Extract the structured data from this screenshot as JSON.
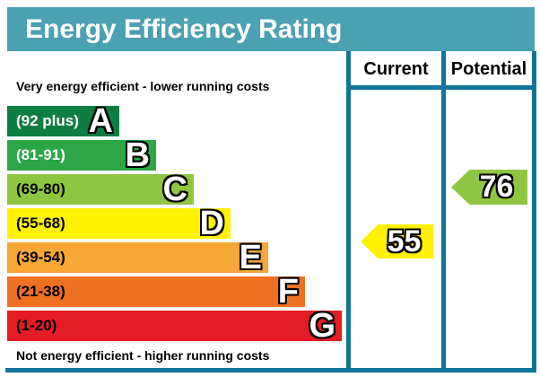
{
  "title": "Energy Efficiency Rating",
  "header": {
    "current_label": "Current",
    "potential_label": "Potential"
  },
  "notes": {
    "top": "Very energy efficient - lower running costs",
    "bottom": "Not energy efficient - higher running costs"
  },
  "bands": [
    {
      "letter": "A",
      "range": "(92 plus)",
      "color": "#0E7D40"
    },
    {
      "letter": "B",
      "range": "(81-91)",
      "color": "#2DA648"
    },
    {
      "letter": "C",
      "range": "(69-80)",
      "color": "#8FC641"
    },
    {
      "letter": "D",
      "range": "(55-68)",
      "color": "#FFF200"
    },
    {
      "letter": "E",
      "range": "(39-54)",
      "color": "#F6A736"
    },
    {
      "letter": "F",
      "range": "(21-38)",
      "color": "#EE7023"
    },
    {
      "letter": "G",
      "range": "(1-20)",
      "color": "#E51C26"
    }
  ],
  "ratings": {
    "current": {
      "value": "55",
      "band": "D",
      "color": "#FFF200"
    },
    "potential": {
      "value": "76",
      "band": "C",
      "color": "#8FC641"
    }
  },
  "colors": {
    "title_bar": "#4AA1B2",
    "frame_border": "#11759B"
  },
  "chart_data": {
    "type": "bar",
    "title": "Energy Efficiency Rating",
    "categories": [
      "A",
      "B",
      "C",
      "D",
      "E",
      "F",
      "G"
    ],
    "band_ranges": [
      "92 plus",
      "81-91",
      "69-80",
      "55-68",
      "39-54",
      "21-38",
      "1-20"
    ],
    "band_colors": [
      "#0E7D40",
      "#2DA648",
      "#8FC641",
      "#FFF200",
      "#F6A736",
      "#EE7023",
      "#E51C26"
    ],
    "bar_relative_widths": [
      125,
      166,
      208,
      249,
      291,
      332,
      373
    ],
    "scale_range": [
      1,
      100
    ],
    "top_annotation": "Very energy efficient - lower running costs",
    "bottom_annotation": "Not energy efficient - higher running costs",
    "column_headers": [
      "Current",
      "Potential"
    ],
    "markers": [
      {
        "name": "Current",
        "value": 55,
        "band": "D",
        "color": "#FFF200"
      },
      {
        "name": "Potential",
        "value": 76,
        "band": "C",
        "color": "#8FC641"
      }
    ],
    "legend_position": "none",
    "grid": false
  }
}
